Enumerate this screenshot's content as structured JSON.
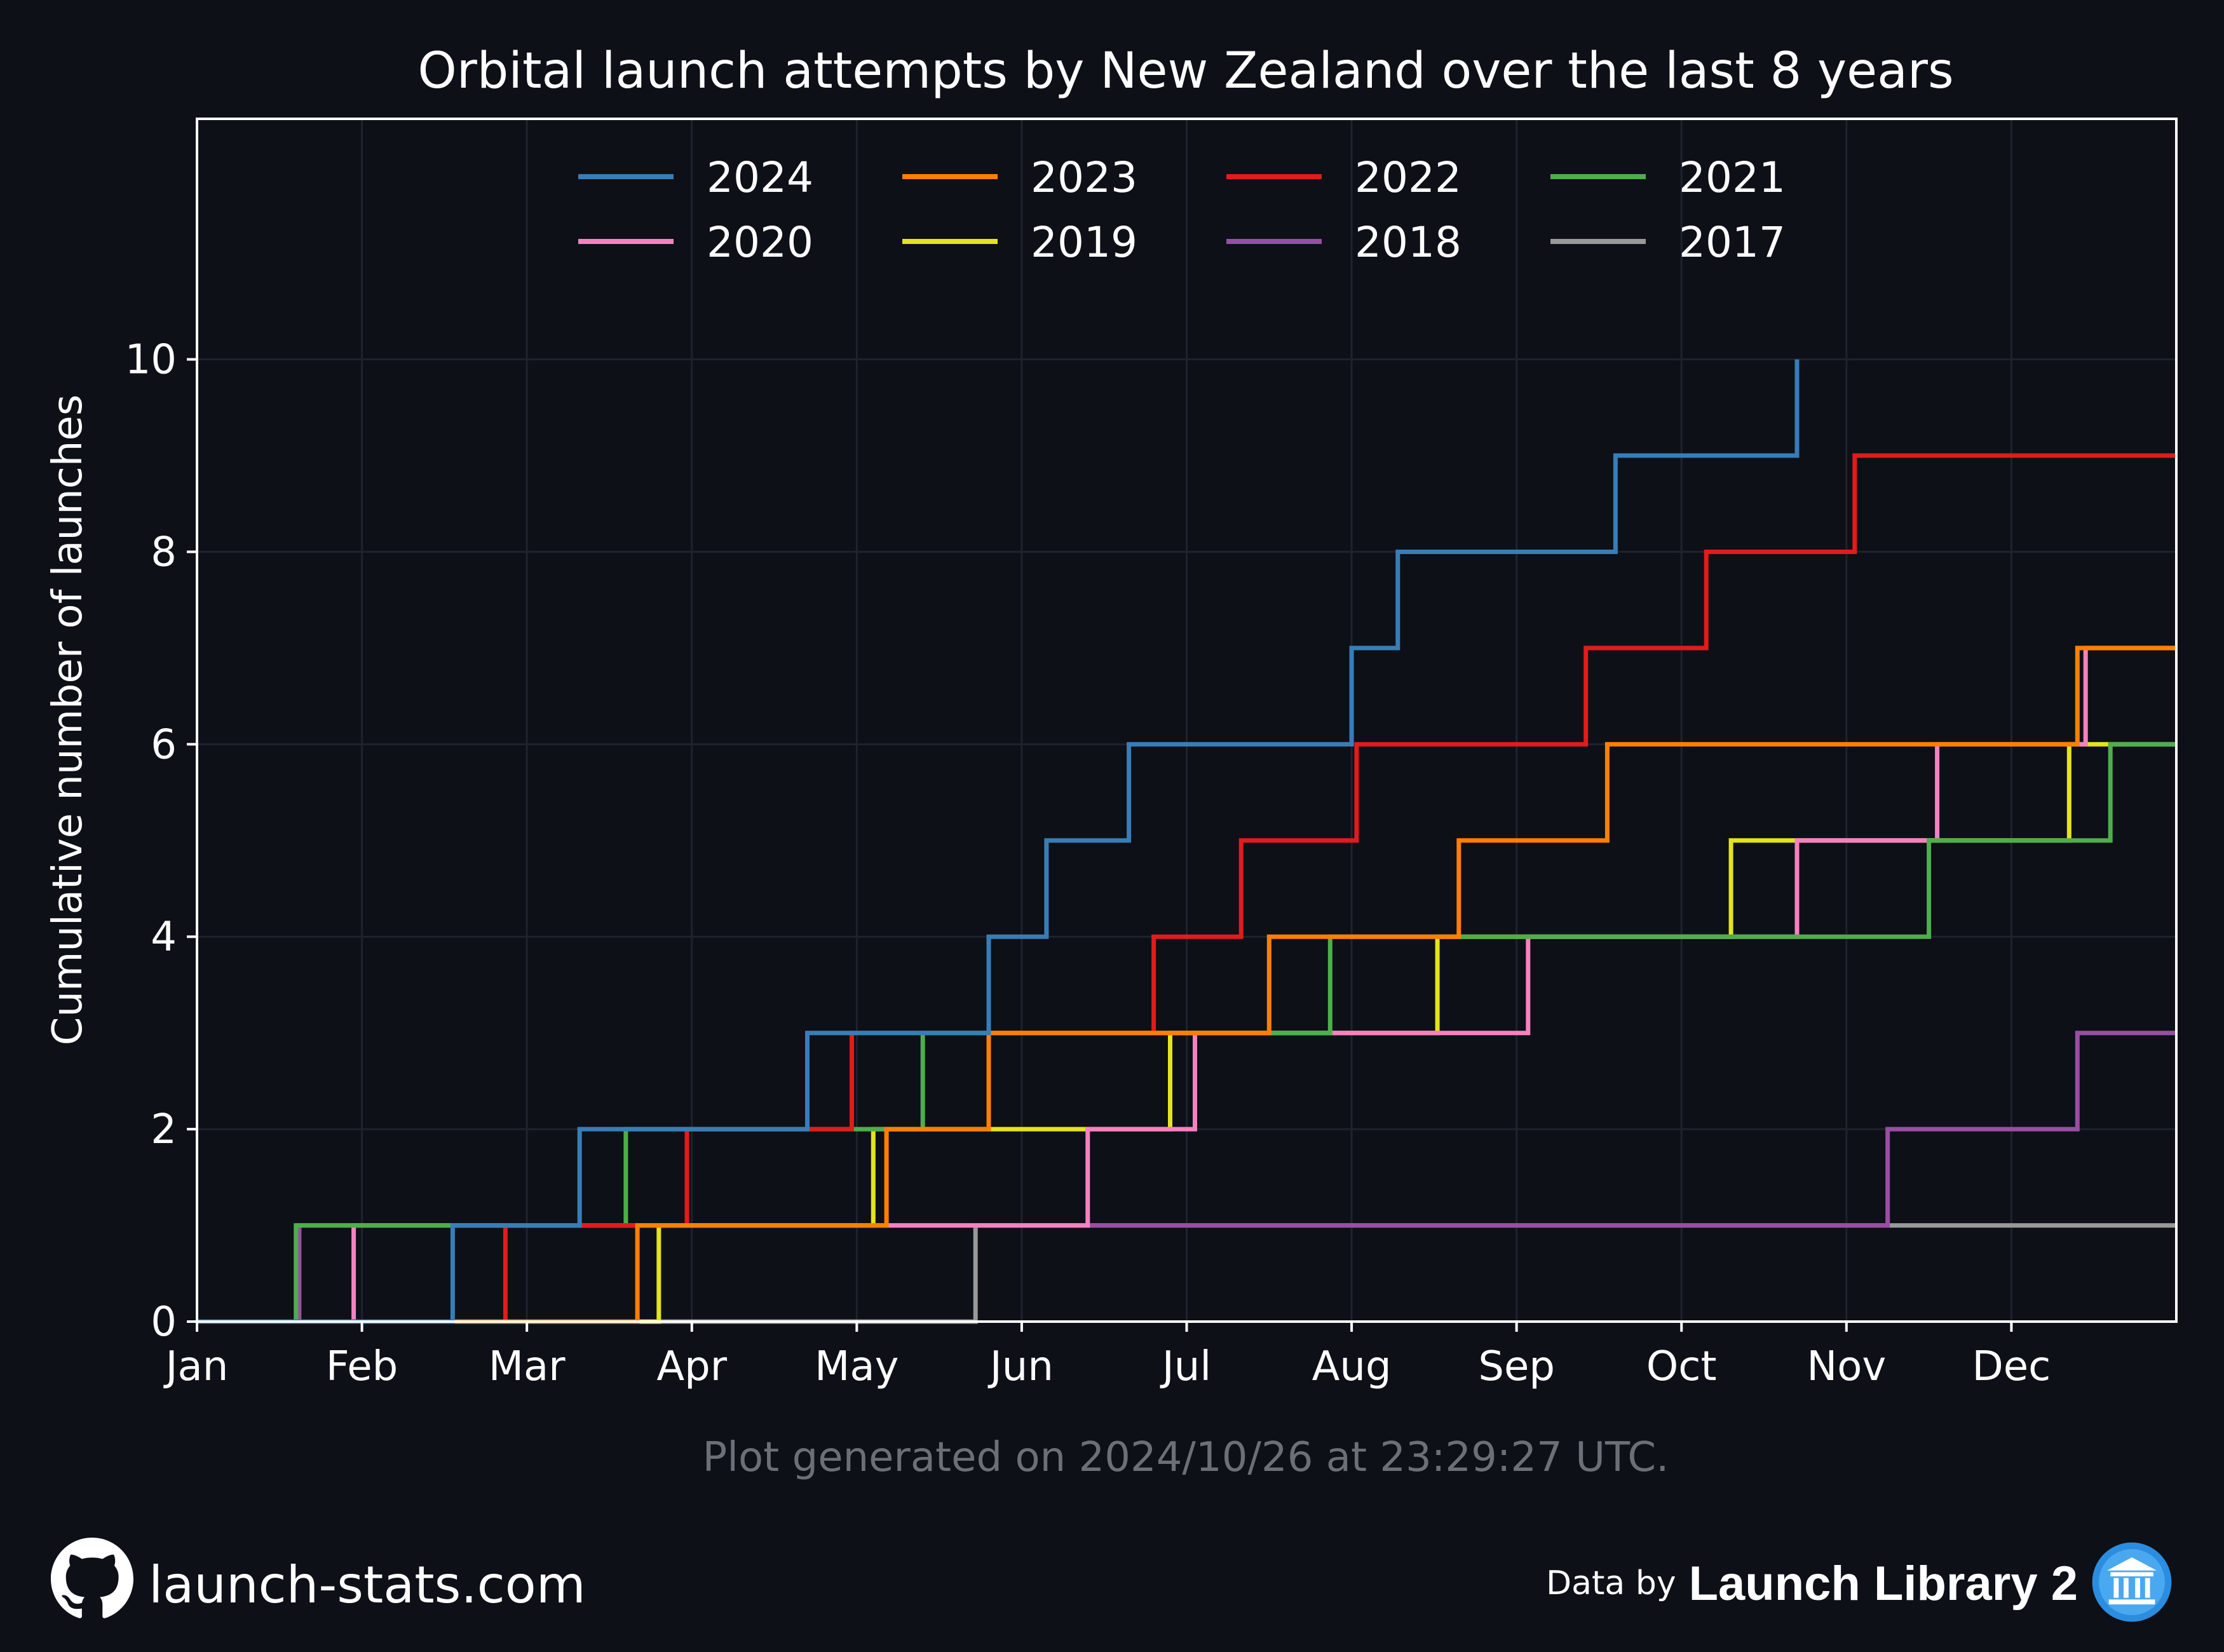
{
  "chart_data": {
    "type": "line",
    "title": "Orbital launch attempts by New Zealand over the last 8 years",
    "xlabel": "",
    "ylabel": "Cumulative number of launches",
    "x_unit": "month of year",
    "xlim": [
      0,
      12
    ],
    "ylim": [
      0,
      12.5
    ],
    "x_ticks": [
      "Jan",
      "Feb",
      "Mar",
      "Apr",
      "May",
      "Jun",
      "Jul",
      "Aug",
      "Sep",
      "Oct",
      "Nov",
      "Dec"
    ],
    "y_ticks": [
      0,
      2,
      4,
      6,
      8,
      10
    ],
    "grid": true,
    "legend_placement": "top-center",
    "series": [
      {
        "name": "2024",
        "color": "#377eb8",
        "x": [
          0,
          1.55,
          2.32,
          3.7,
          4.8,
          5.15,
          5.65,
          7.0,
          7.28,
          8.6,
          9.7
        ],
        "y": [
          0,
          1,
          2,
          3,
          4,
          5,
          6,
          7,
          8,
          9,
          10
        ]
      },
      {
        "name": "2023",
        "color": "#ff7f00",
        "x": [
          0,
          2.67,
          4.18,
          4.8,
          6.5,
          7.65,
          8.55,
          11.4,
          12.0
        ],
        "y": [
          0,
          1,
          2,
          3,
          4,
          5,
          6,
          7,
          7
        ]
      },
      {
        "name": "2022",
        "color": "#e41a1c",
        "x": [
          0,
          1.87,
          2.97,
          3.97,
          5.8,
          6.33,
          7.03,
          8.42,
          9.15,
          10.05,
          12.0
        ],
        "y": [
          0,
          1,
          2,
          3,
          4,
          5,
          6,
          7,
          8,
          9,
          9
        ]
      },
      {
        "name": "2021",
        "color": "#4daf4a",
        "x": [
          0,
          0.6,
          2.6,
          4.4,
          6.87,
          10.5,
          11.6,
          12.0
        ],
        "y": [
          0,
          1,
          2,
          3,
          4,
          5,
          6,
          6
        ]
      },
      {
        "name": "2020",
        "color": "#f781bf",
        "x": [
          0,
          0.95,
          5.4,
          6.05,
          8.07,
          9.7,
          10.55,
          11.45,
          12.0
        ],
        "y": [
          0,
          1,
          2,
          3,
          4,
          5,
          6,
          7,
          7
        ]
      },
      {
        "name": "2019",
        "color": "#e4e41a",
        "x": [
          0,
          2.8,
          4.1,
          5.9,
          7.52,
          9.3,
          11.35,
          12.0
        ],
        "y": [
          0,
          1,
          2,
          3,
          4,
          5,
          6,
          6
        ]
      },
      {
        "name": "2018",
        "color": "#984ea3",
        "x": [
          0,
          0.62,
          10.25,
          11.4,
          12.0
        ],
        "y": [
          0,
          1,
          2,
          3,
          3
        ]
      },
      {
        "name": "2017",
        "color": "#999999",
        "x": [
          0,
          4.72,
          12.0
        ],
        "y": [
          0,
          1,
          1
        ]
      }
    ],
    "annotation": "Plot generated on 2024/10/26 at 23:29:27 UTC."
  },
  "footer": {
    "site": "launch-stats.com",
    "site_icon": "github-icon",
    "credit_prefix": "Data by",
    "credit_name": "Launch Library 2",
    "credit_icon": "library-icon"
  },
  "colors": {
    "background": "#0d1017",
    "text": "#ffffff",
    "grid": "#1e232c",
    "muted_text": "#6b6f76"
  }
}
